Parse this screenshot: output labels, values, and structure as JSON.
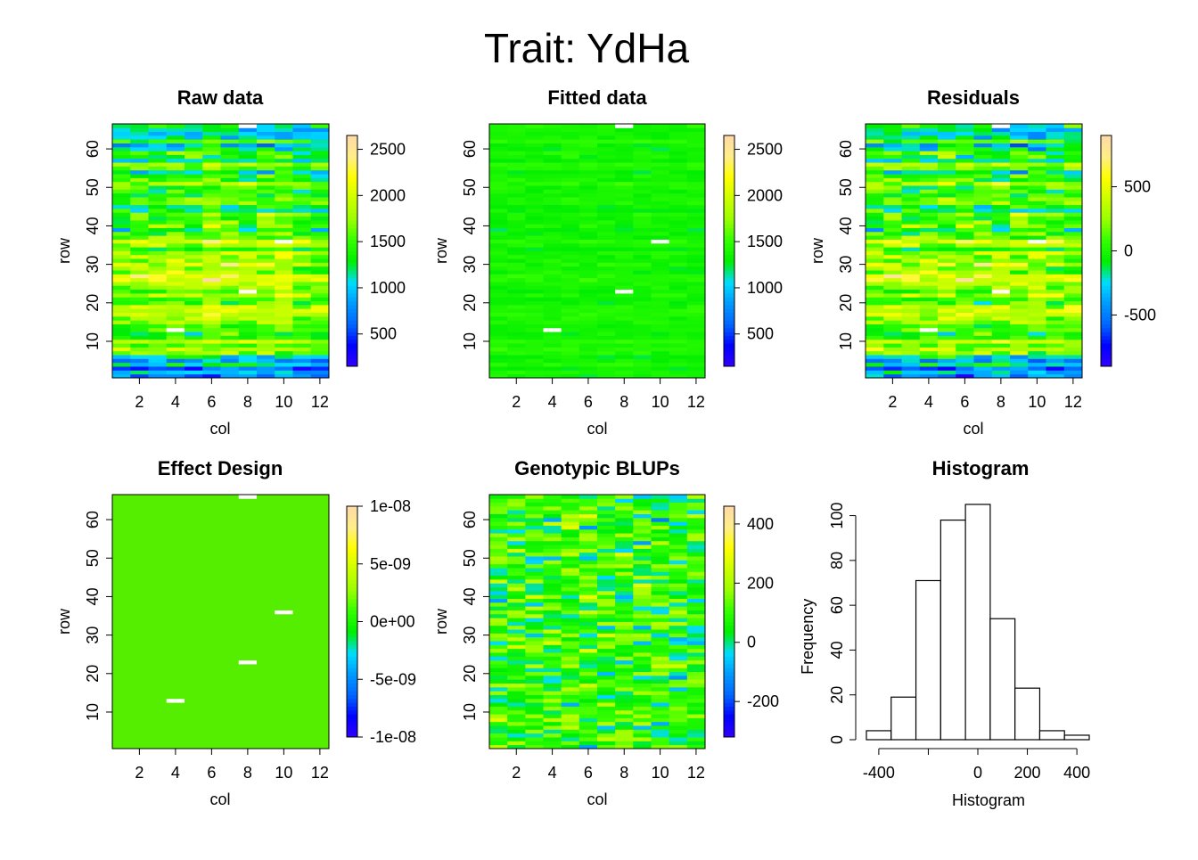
{
  "main_title": "Trait: YdHa",
  "colors": {
    "ramp": [
      "#3300FF",
      "#0000FF",
      "#0066FF",
      "#0099FF",
      "#00DDFF",
      "#00EE00",
      "#33FF00",
      "#99FF00",
      "#CCFF00",
      "#FFFF00",
      "#FFEE88",
      "#FFD9A8"
    ],
    "flat_field": "#55EE00",
    "missing": "#FFFFFF"
  },
  "chart_data": [
    {
      "type": "heatmap",
      "title": "Raw data",
      "xlabel": "col",
      "ylabel": "row",
      "xlim": [
        0.5,
        12.5
      ],
      "ylim": [
        0.5,
        66.5
      ],
      "ncol": 12,
      "nrow": 66,
      "x_ticks": [
        "2",
        "4",
        "6",
        "8",
        "10",
        "12"
      ],
      "y_ticks": [
        "10",
        "20",
        "30",
        "40",
        "50",
        "60"
      ],
      "colorbar": {
        "range": [
          150,
          2650
        ],
        "ticks": [
          "500",
          "1000",
          "1500",
          "2000",
          "2500"
        ],
        "tick_values": [
          500,
          1000,
          1500,
          2000,
          2500
        ]
      },
      "pattern": "raw",
      "missing_cells": [
        [
          4,
          13
        ],
        [
          8,
          23
        ],
        [
          10,
          36
        ],
        [
          8,
          66
        ]
      ]
    },
    {
      "type": "heatmap",
      "title": "Fitted data",
      "xlabel": "col",
      "ylabel": "row",
      "xlim": [
        0.5,
        12.5
      ],
      "ylim": [
        0.5,
        66.5
      ],
      "ncol": 12,
      "nrow": 66,
      "x_ticks": [
        "2",
        "4",
        "6",
        "8",
        "10",
        "12"
      ],
      "y_ticks": [
        "10",
        "20",
        "30",
        "40",
        "50",
        "60"
      ],
      "colorbar": {
        "range": [
          150,
          2650
        ],
        "ticks": [
          "500",
          "1000",
          "1500",
          "2000",
          "2500"
        ],
        "tick_values": [
          500,
          1000,
          1500,
          2000,
          2500
        ]
      },
      "pattern": "fitted",
      "missing_cells": [
        [
          4,
          13
        ],
        [
          8,
          23
        ],
        [
          10,
          36
        ],
        [
          8,
          66
        ]
      ]
    },
    {
      "type": "heatmap",
      "title": "Residuals",
      "xlabel": "col",
      "ylabel": "row",
      "xlim": [
        0.5,
        12.5
      ],
      "ylim": [
        0.5,
        66.5
      ],
      "ncol": 12,
      "nrow": 66,
      "x_ticks": [
        "2",
        "4",
        "6",
        "8",
        "10",
        "12"
      ],
      "y_ticks": [
        "10",
        "20",
        "30",
        "40",
        "50",
        "60"
      ],
      "colorbar": {
        "range": [
          -900,
          900
        ],
        "ticks": [
          "-500",
          "0",
          "500"
        ],
        "tick_values": [
          -500,
          0,
          500
        ]
      },
      "pattern": "residual",
      "missing_cells": [
        [
          4,
          13
        ],
        [
          8,
          23
        ],
        [
          10,
          36
        ],
        [
          8,
          66
        ]
      ]
    },
    {
      "type": "heatmap",
      "title": "Effect Design",
      "xlabel": "col",
      "ylabel": "row",
      "xlim": [
        0.5,
        12.5
      ],
      "ylim": [
        0.5,
        66.5
      ],
      "ncol": 12,
      "nrow": 66,
      "x_ticks": [
        "2",
        "4",
        "6",
        "8",
        "10",
        "12"
      ],
      "y_ticks": [
        "10",
        "20",
        "30",
        "40",
        "50",
        "60"
      ],
      "colorbar": {
        "range": [
          -1e-08,
          1e-08
        ],
        "ticks": [
          "1e-08",
          "5e-09",
          "0e+00",
          "-5e-09",
          "-1e-08"
        ],
        "tick_values": [
          1e-08,
          5e-09,
          0,
          -5e-09,
          -1e-08
        ]
      },
      "pattern": "flat",
      "missing_cells": [
        [
          4,
          13
        ],
        [
          8,
          23
        ],
        [
          10,
          36
        ],
        [
          8,
          66
        ]
      ]
    },
    {
      "type": "heatmap",
      "title": "Genotypic BLUPs",
      "xlabel": "col",
      "ylabel": "row",
      "xlim": [
        0.5,
        12.5
      ],
      "ylim": [
        0.5,
        66.5
      ],
      "ncol": 12,
      "nrow": 66,
      "x_ticks": [
        "2",
        "4",
        "6",
        "8",
        "10",
        "12"
      ],
      "y_ticks": [
        "10",
        "20",
        "30",
        "40",
        "50",
        "60"
      ],
      "colorbar": {
        "range": [
          -320,
          460
        ],
        "ticks": [
          "400",
          "200",
          "0",
          "-200"
        ],
        "tick_values": [
          400,
          200,
          0,
          -200
        ]
      },
      "pattern": "blups",
      "missing_cells": []
    },
    {
      "type": "bar",
      "title": "Histogram",
      "xlabel": "Histogram",
      "ylabel": "Frequency",
      "bins": [
        [
          -450,
          -350
        ],
        [
          -350,
          -250
        ],
        [
          -250,
          -150
        ],
        [
          -150,
          -50
        ],
        [
          -50,
          50
        ],
        [
          50,
          150
        ],
        [
          150,
          250
        ],
        [
          250,
          350
        ],
        [
          350,
          450
        ]
      ],
      "values": [
        4,
        19,
        71,
        98,
        105,
        54,
        23,
        4,
        2
      ],
      "xlim": [
        -450,
        450
      ],
      "ylim": [
        0,
        105
      ],
      "x_ticks": [
        "-400",
        "0",
        "200",
        "400"
      ],
      "y_ticks": [
        "0",
        "20",
        "40",
        "60",
        "80",
        "100"
      ]
    }
  ]
}
